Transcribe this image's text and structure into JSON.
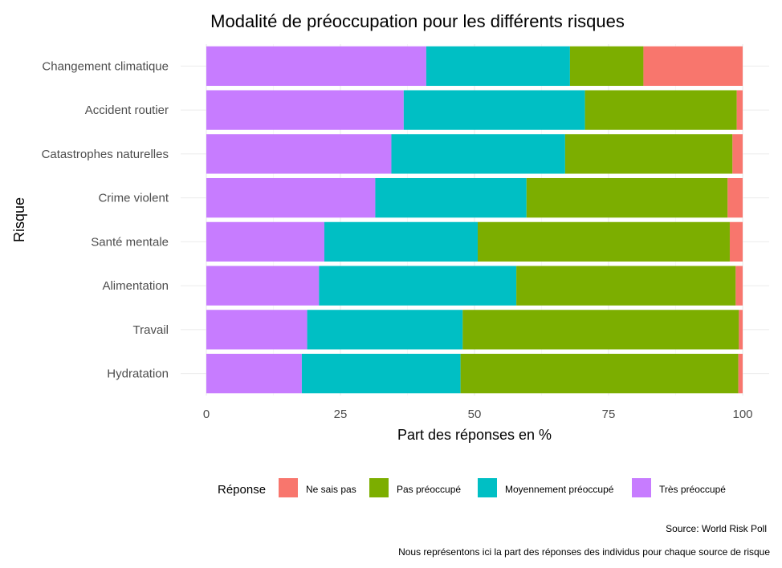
{
  "chart_data": {
    "type": "bar",
    "orientation": "horizontal",
    "stacked": true,
    "title": "Modalité de préoccupation pour les différents risques",
    "xlabel": "Part des réponses en %",
    "ylabel": "Risque",
    "xlim": [
      0,
      100
    ],
    "xticks": [
      0,
      25,
      50,
      75,
      100
    ],
    "grid": true,
    "legend_position": "bottom",
    "legend_title": "Réponse",
    "categories": [
      "Changement climatique",
      "Accident routier",
      "Catastrophes naturelles",
      "Crime violent",
      "Santé mentale",
      "Alimentation",
      "Travail",
      "Hydratation"
    ],
    "series": [
      {
        "name": "Très préoccupé",
        "color": "#C77CFF",
        "values": [
          41.0,
          36.8,
          34.5,
          31.5,
          22.0,
          21.0,
          18.8,
          17.8
        ]
      },
      {
        "name": "Moyennement préoccupé",
        "color": "#00BFC4",
        "values": [
          26.8,
          33.8,
          32.4,
          28.2,
          28.6,
          36.8,
          29.0,
          29.6
        ]
      },
      {
        "name": "Pas préoccupé",
        "color": "#7CAE00",
        "values": [
          13.7,
          28.3,
          31.2,
          37.5,
          47.0,
          40.9,
          51.5,
          51.8
        ]
      },
      {
        "name": "Ne sais pas",
        "color": "#F8766D",
        "values": [
          18.5,
          1.1,
          1.9,
          2.8,
          2.4,
          1.3,
          0.7,
          0.8
        ]
      }
    ],
    "legend_order": [
      "Ne sais pas",
      "Pas préoccupé",
      "Moyennement préoccupé",
      "Très préoccupé"
    ],
    "captions": [
      "Source: World Risk Poll",
      "Nous représentons ici la part des réponses des individus pour chaque source de risque"
    ]
  }
}
